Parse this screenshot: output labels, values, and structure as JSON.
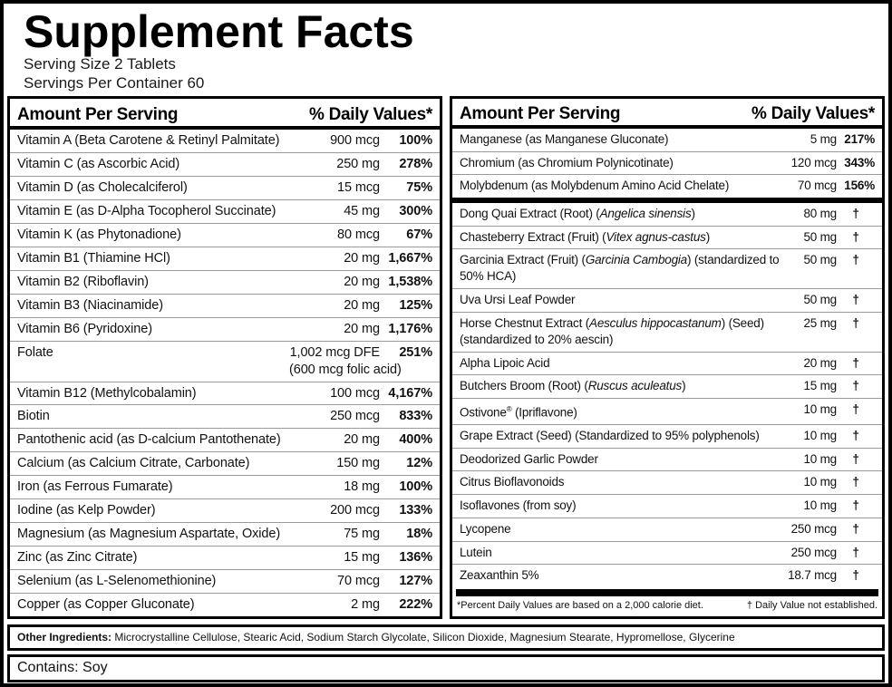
{
  "title": "Supplement Facts",
  "serving_size": "Serving Size 2 Tablets",
  "servings_per_container": "Servings Per Container 60",
  "colors": {
    "border": "#000000",
    "text": "#1a1a1a",
    "row_separator": "#9a9a9a",
    "background": "#ffffff"
  },
  "columns": [
    {
      "header_amount": "Amount Per Serving",
      "header_dv": "% Daily Values*",
      "sections": [
        {
          "rows": [
            {
              "name": [
                {
                  "t": "Vitamin A (Beta Carotene & Retinyl Palmitate)"
                }
              ],
              "amount": "900 mcg",
              "dv": "100%"
            },
            {
              "name": [
                {
                  "t": "Vitamin C (as Ascorbic Acid)"
                }
              ],
              "amount": "250 mg",
              "dv": "278%"
            },
            {
              "name": [
                {
                  "t": "Vitamin D (as Cholecalciferol)"
                }
              ],
              "amount": "15 mcg",
              "dv": "75%"
            },
            {
              "name": [
                {
                  "t": "Vitamin E (as D-Alpha Tocopherol Succinate)"
                }
              ],
              "amount": "45 mg",
              "dv": "300%"
            },
            {
              "name": [
                {
                  "t": "Vitamin K (as Phytonadione)"
                }
              ],
              "amount": "80 mcg",
              "dv": "67%"
            },
            {
              "name": [
                {
                  "t": "Vitamin B1 (Thiamine HCl)"
                }
              ],
              "amount": "20 mg",
              "dv": "1,667%"
            },
            {
              "name": [
                {
                  "t": "Vitamin B2 (Riboflavin)"
                }
              ],
              "amount": "20 mg",
              "dv": "1,538%"
            },
            {
              "name": [
                {
                  "t": "Vitamin B3 (Niacinamide)"
                }
              ],
              "amount": "20 mg",
              "dv": "125%"
            },
            {
              "name": [
                {
                  "t": "Vitamin B6 (Pyridoxine)"
                }
              ],
              "amount": "20 mg",
              "dv": "1,176%"
            },
            {
              "name": [
                {
                  "t": "Folate"
                }
              ],
              "amount": "1,002 mcg DFE",
              "amount2": "(600 mcg folic acid)",
              "dv": "251%"
            },
            {
              "name": [
                {
                  "t": "Vitamin B12 (Methylcobalamin)"
                }
              ],
              "amount": "100 mcg",
              "dv": "4,167%"
            },
            {
              "name": [
                {
                  "t": "Biotin"
                }
              ],
              "amount": "250 mcg",
              "dv": "833%"
            },
            {
              "name": [
                {
                  "t": "Pantothenic acid (as D-calcium Pantothenate)"
                }
              ],
              "amount": "20 mg",
              "dv": "400%"
            },
            {
              "name": [
                {
                  "t": "Calcium (as Calcium Citrate, Carbonate)"
                }
              ],
              "amount": "150 mg",
              "dv": "12%"
            },
            {
              "name": [
                {
                  "t": "Iron (as Ferrous Fumarate)"
                }
              ],
              "amount": "18 mg",
              "dv": "100%"
            },
            {
              "name": [
                {
                  "t": "Iodine (as Kelp Powder)"
                }
              ],
              "amount": "200 mcg",
              "dv": "133%"
            },
            {
              "name": [
                {
                  "t": "Magnesium (as Magnesium Aspartate, Oxide)"
                }
              ],
              "amount": "75 mg",
              "dv": "18%"
            },
            {
              "name": [
                {
                  "t": "Zinc (as Zinc Citrate)"
                }
              ],
              "amount": "15 mg",
              "dv": "136%"
            },
            {
              "name": [
                {
                  "t": "Selenium (as L-Selenomethionine)"
                }
              ],
              "amount": "70 mcg",
              "dv": "127%"
            },
            {
              "name": [
                {
                  "t": "Copper (as Copper Gluconate)"
                }
              ],
              "amount": "2 mg",
              "dv": "222%"
            }
          ]
        }
      ]
    },
    {
      "header_amount": "Amount Per Serving",
      "header_dv": "% Daily Values*",
      "sections": [
        {
          "rows": [
            {
              "name": [
                {
                  "t": "Manganese (as Manganese Gluconate)"
                }
              ],
              "amount": "5 mg",
              "dv": "217%"
            },
            {
              "name": [
                {
                  "t": "Chromium (as Chromium Polynicotinate)"
                }
              ],
              "amount": "120 mcg",
              "dv": "343%"
            },
            {
              "name": [
                {
                  "t": "Molybdenum (as Molybdenum Amino Acid Chelate)"
                }
              ],
              "amount": "70 mcg",
              "dv": "156%"
            }
          ]
        },
        {
          "rows": [
            {
              "name": [
                {
                  "t": "Dong Quai Extract (Root) ("
                },
                {
                  "t": "Angelica sinensis",
                  "i": true
                },
                {
                  "t": ")"
                }
              ],
              "amount": "80 mg",
              "dv": "†"
            },
            {
              "name": [
                {
                  "t": "Chasteberry Extract (Fruit) ("
                },
                {
                  "t": "Vitex agnus-castus",
                  "i": true
                },
                {
                  "t": ")"
                }
              ],
              "amount": "50 mg",
              "dv": "†"
            },
            {
              "name": [
                {
                  "t": "Garcinia Extract (Fruit) ("
                },
                {
                  "t": "Garcinia Cambogia",
                  "i": true
                },
                {
                  "t": ") (standardized to 50% HCA)"
                }
              ],
              "amount": "50 mg",
              "dv": "†"
            },
            {
              "name": [
                {
                  "t": "Uva Ursi Leaf Powder"
                }
              ],
              "amount": "50 mg",
              "dv": "†"
            },
            {
              "name": [
                {
                  "t": "Horse Chestnut Extract ("
                },
                {
                  "t": "Aesculus hippocastanum",
                  "i": true
                },
                {
                  "t": ") (Seed) (standardized to 20% aescin)"
                }
              ],
              "amount": "25 mg",
              "dv": "†"
            },
            {
              "name": [
                {
                  "t": "Alpha Lipoic Acid"
                }
              ],
              "amount": "20 mg",
              "dv": "†"
            },
            {
              "name": [
                {
                  "t": "Butchers Broom (Root) ("
                },
                {
                  "t": "Ruscus aculeatus",
                  "i": true
                },
                {
                  "t": ")"
                }
              ],
              "amount": "15 mg",
              "dv": "†"
            },
            {
              "name": [
                {
                  "t": "Ostivone"
                },
                {
                  "t": "®",
                  "s": true
                },
                {
                  "t": " (Ipriflavone)"
                }
              ],
              "amount": "10 mg",
              "dv": "†"
            },
            {
              "name": [
                {
                  "t": "Grape Extract (Seed) (Standardized to 95% polyphenols)"
                }
              ],
              "amount": "10 mg",
              "dv": "†"
            },
            {
              "name": [
                {
                  "t": "Deodorized Garlic Powder"
                }
              ],
              "amount": "10 mg",
              "dv": "†"
            },
            {
              "name": [
                {
                  "t": "Citrus Bioflavonoids"
                }
              ],
              "amount": "10 mg",
              "dv": "†"
            },
            {
              "name": [
                {
                  "t": "Isoflavones (from soy)"
                }
              ],
              "amount": "10 mg",
              "dv": "†"
            },
            {
              "name": [
                {
                  "t": "Lycopene"
                }
              ],
              "amount": "250 mcg",
              "dv": "†"
            },
            {
              "name": [
                {
                  "t": "Lutein"
                }
              ],
              "amount": "250 mcg",
              "dv": "†"
            },
            {
              "name": [
                {
                  "t": "Zeaxanthin 5%"
                }
              ],
              "amount": "18.7 mcg",
              "dv": "†"
            }
          ]
        }
      ],
      "footnote_left": "*Percent Daily Values are based on a 2,000 calorie diet.",
      "footnote_right": "† Daily Value not established."
    }
  ],
  "other_ingredients_label": "Other Ingredients:",
  "other_ingredients_text": " Microcrystalline Cellulose, Stearic Acid, Sodium Starch Glycolate, Silicon Dioxide, Magnesium Stearate, Hypromellose, Glycerine",
  "contains": "Contains: Soy"
}
